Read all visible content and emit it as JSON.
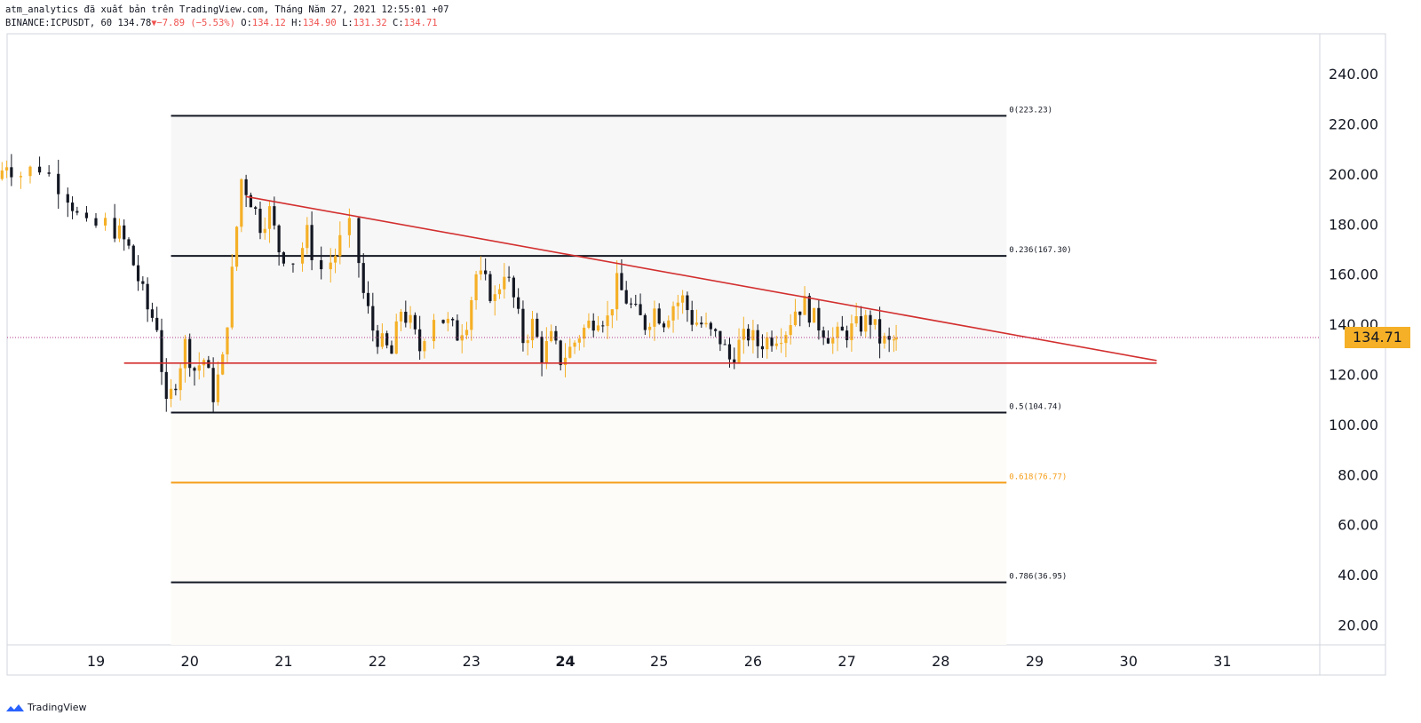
{
  "header": {
    "publish_line": "atm_analytics đã xuất bản trên TradingView.com, Tháng Năm 27, 2021 12:55:01 +07",
    "symbol": "BINANCE:ICPUSDT, 60",
    "last": "134.78",
    "change": "−7.89 (−5.53%)",
    "o_label": "O:",
    "o_value": "134.12",
    "h_label": "H:",
    "h_value": "134.90",
    "l_label": "L:",
    "l_value": "131.32",
    "c_label": "C:",
    "c_value": "134.71"
  },
  "brand": {
    "name": "TradingView",
    "icon": "tradingview-logo-icon"
  },
  "colors": {
    "up": "#f5b027",
    "down": "#131722",
    "trend": "#d32f2f",
    "fib": "#131722",
    "fib_highlight": "#f59d18",
    "price_tag": "#f5b027"
  },
  "chart_data": {
    "type": "candlestick",
    "x_ticks": [
      "19",
      "20",
      "21",
      "22",
      "23",
      "24",
      "25",
      "26",
      "27",
      "28",
      "29",
      "30",
      "31"
    ],
    "x_tick_bold": [
      "24"
    ],
    "y_ticks": [
      "20.00",
      "40.00",
      "60.00",
      "80.00",
      "100.00",
      "120.00",
      "140.00",
      "160.00",
      "180.00",
      "200.00",
      "220.00",
      "240.00"
    ],
    "ylim": [
      12,
      256
    ],
    "current_price": "134.71",
    "fib_levels": [
      {
        "label": "0(223.23)",
        "value": 223.23
      },
      {
        "label": "0.236(167.30)",
        "value": 167.3
      },
      {
        "label": "0.5(104.74)",
        "value": 104.74
      },
      {
        "label": "0.618(76.77)",
        "value": 76.77,
        "highlight": true
      },
      {
        "label": "0.786(36.95)",
        "value": 36.95
      }
    ],
    "fib_x_range": [
      "19.8",
      "28.7"
    ],
    "trend_lines": [
      {
        "name": "resistance",
        "from": [
          "20.6",
          191
        ],
        "to": [
          "30.3",
          125.5
        ]
      },
      {
        "name": "support",
        "from": [
          "19.3",
          124.5
        ],
        "to": [
          "30.3",
          124.5
        ]
      }
    ],
    "close_series": [
      {
        "t": "18.0",
        "c": 198
      },
      {
        "t": "18.1",
        "c": 205
      },
      {
        "t": "18.3",
        "c": 200
      },
      {
        "t": "18.5",
        "c": 203
      },
      {
        "t": "18.7",
        "c": 196
      },
      {
        "t": "18.8",
        "c": 188
      },
      {
        "t": "19.0",
        "c": 178
      },
      {
        "t": "19.2",
        "c": 180
      },
      {
        "t": "19.3",
        "c": 176
      },
      {
        "t": "19.4",
        "c": 170
      },
      {
        "t": "19.5",
        "c": 158
      },
      {
        "t": "19.6",
        "c": 146
      },
      {
        "t": "19.7",
        "c": 140
      },
      {
        "t": "19.8",
        "c": 106
      },
      {
        "t": "19.9",
        "c": 118
      },
      {
        "t": "20.0",
        "c": 132
      },
      {
        "t": "20.1",
        "c": 122
      },
      {
        "t": "20.2",
        "c": 126
      },
      {
        "t": "20.3",
        "c": 112
      },
      {
        "t": "20.4",
        "c": 125
      },
      {
        "t": "20.5",
        "c": 160
      },
      {
        "t": "20.6",
        "c": 198
      },
      {
        "t": "20.7",
        "c": 190
      },
      {
        "t": "20.8",
        "c": 180
      },
      {
        "t": "20.9",
        "c": 185
      },
      {
        "t": "21.0",
        "c": 170
      },
      {
        "t": "21.2",
        "c": 166
      },
      {
        "t": "21.3",
        "c": 176
      },
      {
        "t": "21.5",
        "c": 162
      },
      {
        "t": "21.6",
        "c": 168
      },
      {
        "t": "21.8",
        "c": 178
      },
      {
        "t": "21.9",
        "c": 152
      },
      {
        "t": "22.0",
        "c": 138
      },
      {
        "t": "22.1",
        "c": 132
      },
      {
        "t": "22.2",
        "c": 128
      },
      {
        "t": "22.3",
        "c": 146
      },
      {
        "t": "22.4",
        "c": 140
      },
      {
        "t": "22.5",
        "c": 130
      },
      {
        "t": "22.7",
        "c": 144
      },
      {
        "t": "22.8",
        "c": 140
      },
      {
        "t": "22.9",
        "c": 136
      },
      {
        "t": "23.0",
        "c": 142
      },
      {
        "t": "23.1",
        "c": 160
      },
      {
        "t": "23.2",
        "c": 156
      },
      {
        "t": "23.3",
        "c": 150
      },
      {
        "t": "23.4",
        "c": 162
      },
      {
        "t": "23.5",
        "c": 150
      },
      {
        "t": "23.6",
        "c": 134
      },
      {
        "t": "23.7",
        "c": 140
      },
      {
        "t": "23.8",
        "c": 128
      },
      {
        "t": "23.9",
        "c": 134
      },
      {
        "t": "24.0",
        "c": 126
      },
      {
        "t": "24.1",
        "c": 130
      },
      {
        "t": "24.2",
        "c": 136
      },
      {
        "t": "24.3",
        "c": 140
      },
      {
        "t": "24.4",
        "c": 144
      },
      {
        "t": "24.5",
        "c": 142
      },
      {
        "t": "24.6",
        "c": 156
      },
      {
        "t": "24.7",
        "c": 150
      },
      {
        "t": "24.8",
        "c": 144
      },
      {
        "t": "24.9",
        "c": 140
      },
      {
        "t": "25.0",
        "c": 146
      },
      {
        "t": "25.1",
        "c": 142
      },
      {
        "t": "25.2",
        "c": 148
      },
      {
        "t": "25.3",
        "c": 150
      },
      {
        "t": "25.4",
        "c": 142
      },
      {
        "t": "25.5",
        "c": 140
      },
      {
        "t": "25.6",
        "c": 136
      },
      {
        "t": "25.7",
        "c": 134
      },
      {
        "t": "25.8",
        "c": 126
      },
      {
        "t": "25.9",
        "c": 132
      },
      {
        "t": "26.0",
        "c": 136
      },
      {
        "t": "26.1",
        "c": 132
      },
      {
        "t": "26.2",
        "c": 134
      },
      {
        "t": "26.3",
        "c": 136
      },
      {
        "t": "26.4",
        "c": 138
      },
      {
        "t": "26.5",
        "c": 146
      },
      {
        "t": "26.6",
        "c": 148
      },
      {
        "t": "26.7",
        "c": 142
      },
      {
        "t": "26.8",
        "c": 138
      },
      {
        "t": "26.9",
        "c": 134
      },
      {
        "t": "27.0",
        "c": 136
      },
      {
        "t": "27.1",
        "c": 138
      },
      {
        "t": "27.2",
        "c": 140
      },
      {
        "t": "27.3",
        "c": 142
      },
      {
        "t": "27.4",
        "c": 134
      },
      {
        "t": "27.5",
        "c": 132
      },
      {
        "t": "27.55",
        "c": 134.71
      }
    ]
  }
}
